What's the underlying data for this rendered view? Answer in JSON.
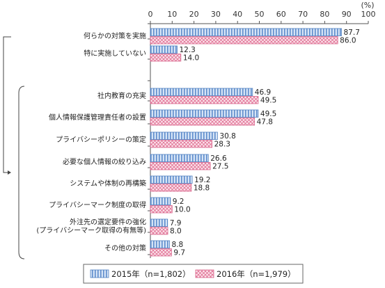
{
  "chart_data": {
    "type": "bar",
    "orientation": "horizontal",
    "unit_label": "(%)",
    "xlim": [
      0,
      100
    ],
    "xticks": [
      "0",
      "10",
      "20",
      "30",
      "40",
      "50",
      "60",
      "70",
      "80",
      "90",
      "100"
    ],
    "categories": [
      [
        "何らかの対策を実施"
      ],
      [
        "特に実施していない"
      ],
      [
        "社内教育の充実"
      ],
      [
        "個人情報保護管理責任者の設置"
      ],
      [
        "プライバシーポリシーの策定"
      ],
      [
        "必要な個人情報の絞り込み"
      ],
      [
        "システムや体制の再構築"
      ],
      [
        "プライバシーマーク制度の取得"
      ],
      [
        "外注先の選定要件の強化",
        "(プライバシーマーク取得の有無等)"
      ],
      [
        "その他の対策"
      ]
    ],
    "series": [
      {
        "name": "2015年（n=1,802）",
        "values": [
          87.7,
          12.3,
          46.9,
          49.5,
          30.8,
          26.6,
          19.2,
          9.2,
          7.9,
          8.8
        ],
        "labels": [
          "87.7",
          "12.3",
          "46.9",
          "49.5",
          "30.8",
          "26.6",
          "19.2",
          "9.2",
          "7.9",
          "8.8"
        ],
        "color": "#8fb4e3",
        "pattern": "vertical-stripes"
      },
      {
        "name": "2016年（n=1,979）",
        "values": [
          86.0,
          14.0,
          49.5,
          47.8,
          28.3,
          27.5,
          18.8,
          10.0,
          8.0,
          9.7
        ],
        "labels": [
          "86.0",
          "14.0",
          "49.5",
          "47.8",
          "28.3",
          "27.5",
          "18.8",
          "10.0",
          "8.0",
          "9.7"
        ],
        "color": "#e88aa6",
        "pattern": "crosshatch"
      }
    ],
    "legend_position": "bottom",
    "grid": false,
    "brackets": "categories 3–10 grouped as breakdown of 何らかの対策を実施"
  }
}
